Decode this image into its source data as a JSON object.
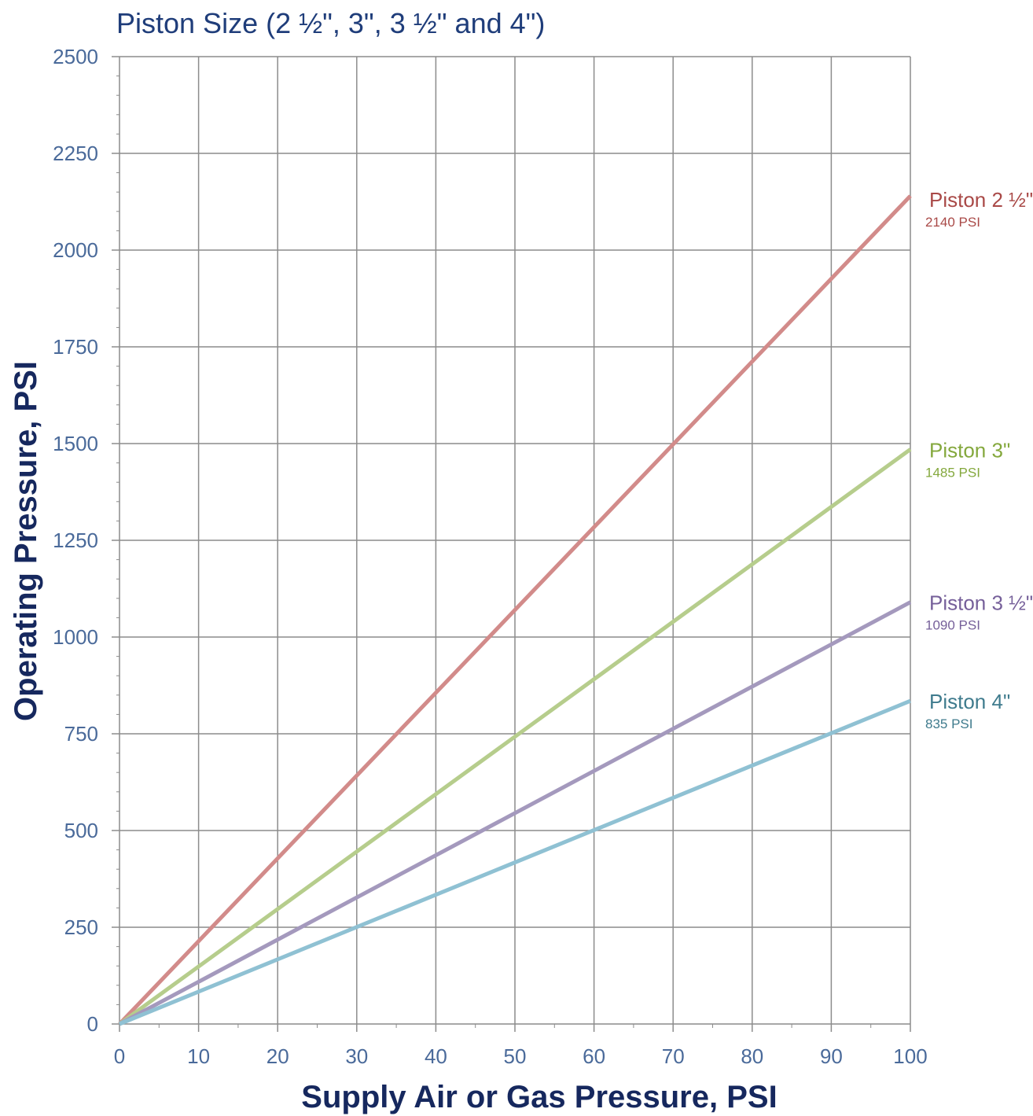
{
  "chart_data": {
    "type": "line",
    "title": "Piston Size (2 ½\", 3\", 3 ½\" and  4\")",
    "xlabel": "Supply Air or Gas Pressure, PSI",
    "ylabel": "Operating Pressure, PSI",
    "xlim": [
      0,
      100
    ],
    "ylim": [
      0,
      2500
    ],
    "xticks": [
      "0",
      "10",
      "20",
      "30",
      "40",
      "50",
      "60",
      "70",
      "80",
      "90",
      "100"
    ],
    "yticks": [
      "0",
      "250",
      "500",
      "750",
      "1000",
      "1250",
      "1500",
      "1750",
      "2000",
      "2250",
      "2500"
    ],
    "grid": true,
    "series": [
      {
        "name": "Piston 2 ½\"",
        "value_label": "2140 PSI",
        "color": "#d28b8a",
        "label_color": "#a94947",
        "x": [
          0,
          100
        ],
        "y": [
          0,
          2140
        ]
      },
      {
        "name": "Piston 3\"",
        "value_label": "1485 PSI",
        "color": "#b6cd8c",
        "label_color": "#84a83d",
        "x": [
          0,
          100
        ],
        "y": [
          0,
          1485
        ]
      },
      {
        "name": "Piston 3 ½\"",
        "value_label": "1090 PSI",
        "color": "#a499bd",
        "label_color": "#76609a",
        "x": [
          0,
          100
        ],
        "y": [
          0,
          1090
        ]
      },
      {
        "name": "Piston 4\"",
        "value_label": "835 PSI",
        "color": "#8fc1d3",
        "label_color": "#3f7b8d",
        "x": [
          0,
          100
        ],
        "y": [
          0,
          835
        ]
      }
    ]
  }
}
